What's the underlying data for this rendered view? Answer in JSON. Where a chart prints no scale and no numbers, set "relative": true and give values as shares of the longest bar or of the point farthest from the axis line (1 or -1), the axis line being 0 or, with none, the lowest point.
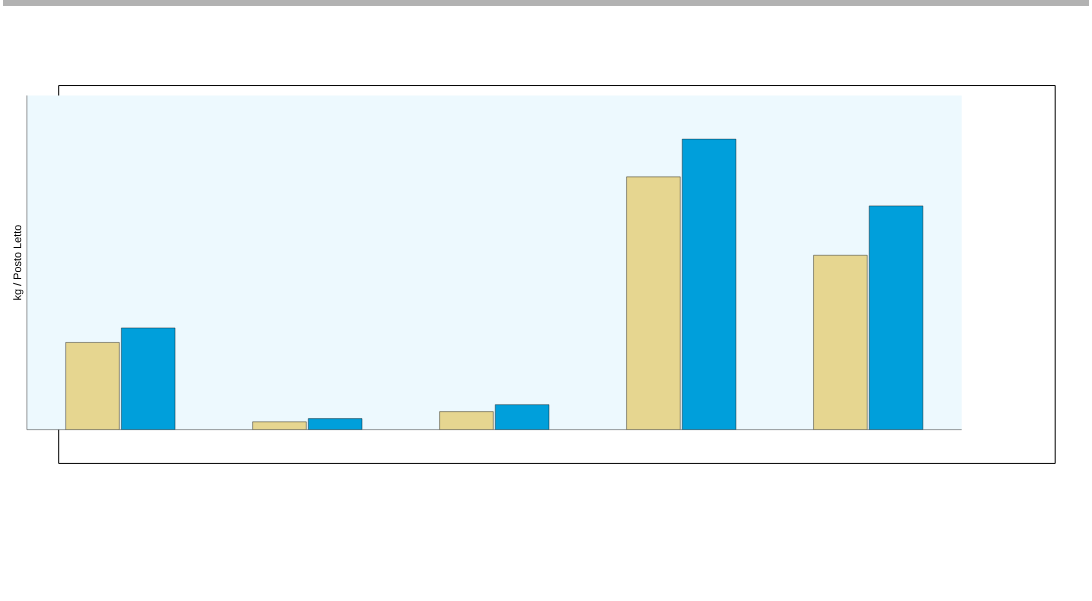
{
  "chart_data": {
    "type": "bar",
    "ylabel": "kg / Posto Letto",
    "relative": true,
    "categories": [
      null,
      null,
      null,
      null,
      null
    ],
    "series": [
      {
        "color": "#e6d690",
        "values": [
          0.3,
          0.027,
          0.062,
          0.87,
          0.6
        ]
      },
      {
        "color": "#009fdb",
        "values": [
          0.35,
          0.038,
          0.086,
          1,
          0.77
        ]
      }
    ]
  }
}
